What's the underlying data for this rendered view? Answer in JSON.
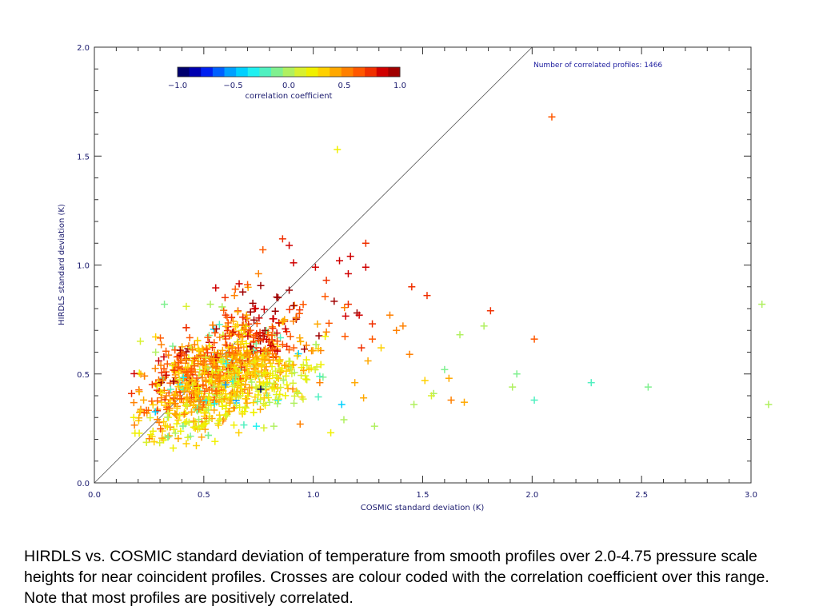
{
  "chart_data": {
    "type": "scatter",
    "xlabel": "COSMIC standard deviation (K)",
    "ylabel": "HIRDLS standard deviation (K)",
    "xlim": [
      0.0,
      3.0
    ],
    "ylim": [
      0.0,
      2.0
    ],
    "x_ticks": [
      "0.0",
      "0.5",
      "1.0",
      "1.5",
      "2.0",
      "2.5",
      "3.0"
    ],
    "y_ticks": [
      "0.0",
      "0.5",
      "1.0",
      "1.5",
      "2.0"
    ],
    "annotation": "Number of correlated profiles: 1466",
    "reference_line": "1:1 line",
    "marker": "cross",
    "colorbar": {
      "label": "correlation coefficient",
      "range": [
        -1.0,
        1.0
      ],
      "tick_labels": [
        "−1.0",
        "−0.5",
        "0.0",
        "0.5",
        "1.0"
      ],
      "colors": [
        "#00006e",
        "#0000b0",
        "#0020f0",
        "#0060ff",
        "#00a0ff",
        "#00d0ff",
        "#20f0f0",
        "#50f0c0",
        "#80f090",
        "#b0f060",
        "#d8f030",
        "#f0f000",
        "#ffd000",
        "#ffa800",
        "#ff8000",
        "#ff5800",
        "#f03000",
        "#d00000",
        "#a00000"
      ]
    },
    "points": [
      {
        "x": 2.09,
        "y": 1.68,
        "c": 0.7
      },
      {
        "x": 1.11,
        "y": 1.53,
        "c": 0.25
      },
      {
        "x": 3.05,
        "y": 0.82,
        "c": -0.05
      },
      {
        "x": 3.08,
        "y": 0.36,
        "c": 0.0
      },
      {
        "x": 2.53,
        "y": 0.44,
        "c": -0.1
      },
      {
        "x": 2.27,
        "y": 0.46,
        "c": -0.2
      },
      {
        "x": 2.01,
        "y": 0.38,
        "c": -0.25
      },
      {
        "x": 1.93,
        "y": 0.5,
        "c": -0.1
      },
      {
        "x": 1.91,
        "y": 0.44,
        "c": -0.05
      },
      {
        "x": 2.01,
        "y": 0.66,
        "c": 0.7
      },
      {
        "x": 1.81,
        "y": 0.79,
        "c": 0.75
      },
      {
        "x": 1.78,
        "y": 0.72,
        "c": 0.0
      },
      {
        "x": 1.67,
        "y": 0.68,
        "c": 0.0
      },
      {
        "x": 1.52,
        "y": 0.86,
        "c": 0.8
      },
      {
        "x": 1.45,
        "y": 0.9,
        "c": 0.8
      },
      {
        "x": 1.44,
        "y": 0.59,
        "c": 0.5
      },
      {
        "x": 1.6,
        "y": 0.52,
        "c": -0.1
      },
      {
        "x": 1.62,
        "y": 0.48,
        "c": 0.4
      },
      {
        "x": 1.63,
        "y": 0.38,
        "c": 0.5
      },
      {
        "x": 1.69,
        "y": 0.37,
        "c": 0.4
      },
      {
        "x": 1.55,
        "y": 0.41,
        "c": -0.05
      },
      {
        "x": 1.54,
        "y": 0.4,
        "c": 0.1
      },
      {
        "x": 1.46,
        "y": 0.36,
        "c": 0.0
      },
      {
        "x": 1.51,
        "y": 0.47,
        "c": 0.3
      },
      {
        "x": 1.28,
        "y": 0.26,
        "c": -0.05
      },
      {
        "x": 1.14,
        "y": 0.29,
        "c": -0.05
      },
      {
        "x": 1.08,
        "y": 0.23,
        "c": 0.2
      },
      {
        "x": 1.13,
        "y": 0.36,
        "c": -0.5
      },
      {
        "x": 1.24,
        "y": 1.1,
        "c": 0.75
      },
      {
        "x": 1.17,
        "y": 1.04,
        "c": 0.85
      },
      {
        "x": 1.12,
        "y": 1.02,
        "c": 0.9
      },
      {
        "x": 1.24,
        "y": 0.99,
        "c": 0.85
      },
      {
        "x": 0.86,
        "y": 1.12,
        "c": 0.75
      },
      {
        "x": 0.77,
        "y": 1.07,
        "c": 0.7
      },
      {
        "x": 0.89,
        "y": 1.09,
        "c": 0.9
      },
      {
        "x": 0.75,
        "y": 0.96,
        "c": 0.6
      },
      {
        "x": 0.91,
        "y": 1.01,
        "c": 0.85
      },
      {
        "x": 1.01,
        "y": 0.99,
        "c": 0.9
      },
      {
        "x": 1.06,
        "y": 0.93,
        "c": 0.8
      },
      {
        "x": 1.16,
        "y": 0.96,
        "c": 0.9
      },
      {
        "x": 1.2,
        "y": 0.78,
        "c": 0.95
      },
      {
        "x": 1.21,
        "y": 0.77,
        "c": 0.9
      },
      {
        "x": 1.27,
        "y": 0.73,
        "c": 0.75
      },
      {
        "x": 1.35,
        "y": 0.77,
        "c": 0.5
      },
      {
        "x": 1.27,
        "y": 0.66,
        "c": 0.65
      },
      {
        "x": 1.38,
        "y": 0.7,
        "c": 0.5
      },
      {
        "x": 1.41,
        "y": 0.72,
        "c": 0.6
      },
      {
        "x": 1.31,
        "y": 0.62,
        "c": 0.3
      },
      {
        "x": 0.32,
        "y": 0.82,
        "c": -0.1
      },
      {
        "x": 0.42,
        "y": 0.81,
        "c": 0.1
      },
      {
        "x": 0.53,
        "y": 0.82,
        "c": -0.05
      },
      {
        "x": 0.21,
        "y": 0.65,
        "c": 0.1
      },
      {
        "x": 0.17,
        "y": 0.41,
        "c": 0.75
      },
      {
        "x": 0.18,
        "y": 0.3,
        "c": 0.2
      },
      {
        "x": 0.21,
        "y": 0.33,
        "c": 0.3
      },
      {
        "x": 0.28,
        "y": 0.6,
        "c": -0.05
      },
      {
        "x": 0.36,
        "y": 0.16,
        "c": 0.2
      },
      {
        "x": 0.42,
        "y": 0.18,
        "c": 0.3
      },
      {
        "x": 0.49,
        "y": 0.21,
        "c": 0.4
      },
      {
        "x": 0.66,
        "y": 0.23,
        "c": 0.3
      },
      {
        "x": 0.94,
        "y": 0.27,
        "c": 0.5
      },
      {
        "x": 0.74,
        "y": 0.26,
        "c": -0.3
      },
      {
        "x": 0.82,
        "y": 0.26,
        "c": -0.05
      },
      {
        "x": 0.6,
        "y": 0.45,
        "c": -0.6
      },
      {
        "x": 0.76,
        "y": 0.43,
        "c": -0.95
      },
      {
        "x": 1.19,
        "y": 0.46,
        "c": 0.4
      },
      {
        "x": 1.23,
        "y": 0.39,
        "c": 0.4
      },
      {
        "x": 1.25,
        "y": 0.56,
        "c": 0.4
      },
      {
        "x": 1.22,
        "y": 0.62,
        "c": 0.75
      },
      {
        "x": 1.16,
        "y": 0.82,
        "c": 0.8
      },
      {
        "x": 0.7,
        "y": 0.91,
        "c": 0.7
      },
      {
        "x": 0.64,
        "y": 0.86,
        "c": 0.5
      },
      {
        "x": 0.98,
        "y": 0.52,
        "c": 0.3
      },
      {
        "x": 0.88,
        "y": 0.45,
        "c": 0.2
      },
      {
        "x": 1.03,
        "y": 0.46,
        "c": 0.5
      },
      {
        "x": 0.28,
        "y": 0.67,
        "c": 0.3
      }
    ]
  },
  "caption": "HIRDLS vs. COSMIC standard deviation of temperature from smooth profiles over 2.0-4.75 pressure scale heights for near coincident profiles. Crosses are colour coded with the correlation coefficient over this range.  Note that most profiles are positively correlated."
}
